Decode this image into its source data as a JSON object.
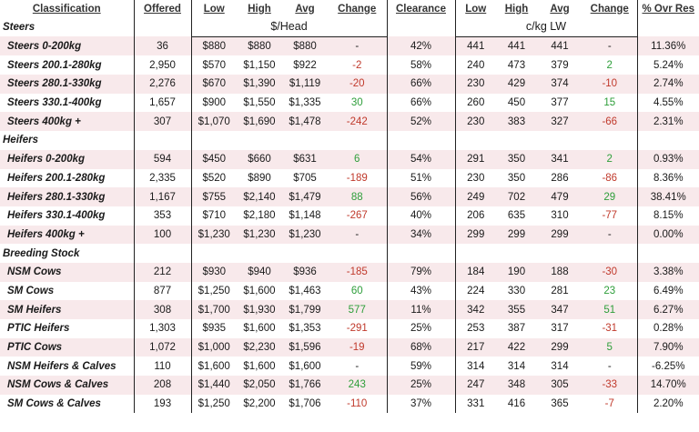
{
  "header": [
    "Classification",
    "Offered",
    "Low",
    "High",
    "Avg",
    "Change",
    "Clearance",
    "Low",
    "High",
    "Avg",
    "Change",
    "% Ovr Res"
  ],
  "units": [
    "$/Head",
    "c/kg LW"
  ],
  "sections": [
    {
      "title": "Steers",
      "rows": [
        [
          "Steers 0-200kg",
          "36",
          "$880",
          "$880",
          "$880",
          "-",
          "42%",
          "441",
          "441",
          "441",
          "-",
          "11.36%"
        ],
        [
          "Steers 200.1-280kg",
          "2,950",
          "$570",
          "$1,150",
          "$922",
          "-2",
          "58%",
          "240",
          "473",
          "379",
          "2",
          "5.24%"
        ],
        [
          "Steers 280.1-330kg",
          "2,276",
          "$670",
          "$1,390",
          "$1,119",
          "-20",
          "66%",
          "230",
          "429",
          "374",
          "-10",
          "2.74%"
        ],
        [
          "Steers 330.1-400kg",
          "1,657",
          "$900",
          "$1,550",
          "$1,335",
          "30",
          "66%",
          "260",
          "450",
          "377",
          "15",
          "4.55%"
        ],
        [
          "Steers 400kg +",
          "307",
          "$1,070",
          "$1,690",
          "$1,478",
          "-242",
          "52%",
          "230",
          "383",
          "327",
          "-66",
          "2.31%"
        ]
      ]
    },
    {
      "title": "Heifers",
      "rows": [
        [
          "Heifers 0-200kg",
          "594",
          "$450",
          "$660",
          "$631",
          "6",
          "54%",
          "291",
          "350",
          "341",
          "2",
          "0.93%"
        ],
        [
          "Heifers 200.1-280kg",
          "2,335",
          "$520",
          "$890",
          "$705",
          "-189",
          "51%",
          "230",
          "350",
          "286",
          "-86",
          "8.36%"
        ],
        [
          "Heifers 280.1-330kg",
          "1,167",
          "$755",
          "$2,140",
          "$1,479",
          "88",
          "56%",
          "249",
          "702",
          "479",
          "29",
          "38.41%"
        ],
        [
          "Heifers 330.1-400kg",
          "353",
          "$710",
          "$2,180",
          "$1,148",
          "-267",
          "40%",
          "206",
          "635",
          "310",
          "-77",
          "8.15%"
        ],
        [
          "Heifers 400kg +",
          "100",
          "$1,230",
          "$1,230",
          "$1,230",
          "-",
          "34%",
          "299",
          "299",
          "299",
          "-",
          "0.00%"
        ]
      ]
    },
    {
      "title": "Breeding Stock",
      "rows": [
        [
          "NSM Cows",
          "212",
          "$930",
          "$940",
          "$936",
          "-185",
          "79%",
          "184",
          "190",
          "188",
          "-30",
          "3.38%"
        ],
        [
          "SM Cows",
          "877",
          "$1,250",
          "$1,600",
          "$1,463",
          "60",
          "43%",
          "224",
          "330",
          "281",
          "23",
          "6.49%"
        ],
        [
          "SM Heifers",
          "308",
          "$1,700",
          "$1,930",
          "$1,799",
          "577",
          "11%",
          "342",
          "355",
          "347",
          "51",
          "6.27%"
        ],
        [
          "PTIC Heifers",
          "1,303",
          "$935",
          "$1,600",
          "$1,353",
          "-291",
          "25%",
          "253",
          "387",
          "317",
          "-31",
          "0.28%"
        ],
        [
          "PTIC Cows",
          "1,072",
          "$1,000",
          "$2,230",
          "$1,596",
          "-19",
          "68%",
          "217",
          "422",
          "299",
          "5",
          "7.90%"
        ],
        [
          "NSM Heifers & Calves",
          "110",
          "$1,600",
          "$1,600",
          "$1,600",
          "-",
          "59%",
          "314",
          "314",
          "314",
          "-",
          "-6.25%"
        ],
        [
          "NSM Cows & Calves",
          "208",
          "$1,440",
          "$2,050",
          "$1,766",
          "243",
          "25%",
          "247",
          "348",
          "305",
          "-33",
          "14.70%"
        ],
        [
          "SM Cows & Calves",
          "193",
          "$1,250",
          "$2,200",
          "$1,706",
          "-110",
          "37%",
          "331",
          "416",
          "365",
          "-7",
          "2.20%"
        ]
      ]
    }
  ]
}
